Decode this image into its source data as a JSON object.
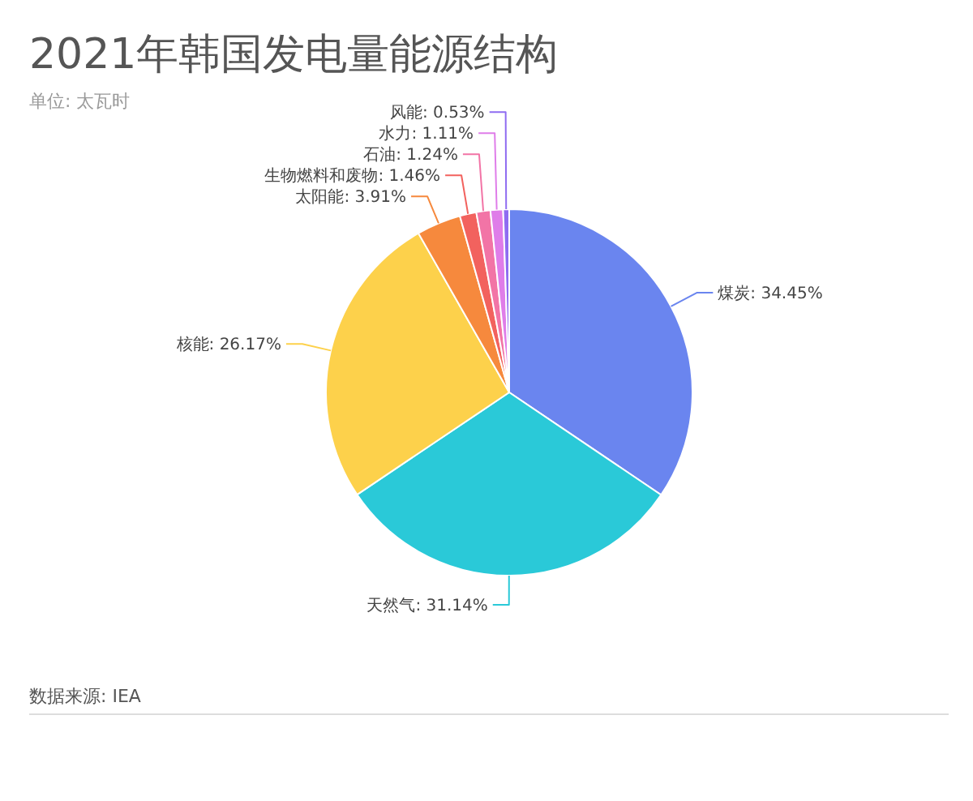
{
  "chart_data": {
    "type": "pie",
    "title": "2021年韩国发电量能源结构",
    "subtitle": "单位: 太瓦时",
    "categories": [
      "煤炭",
      "天然气",
      "核能",
      "太阳能",
      "生物燃料和废物",
      "石油",
      "水力",
      "风能"
    ],
    "values": [
      34.45,
      31.14,
      26.17,
      3.91,
      1.46,
      1.24,
      1.11,
      0.53
    ],
    "colors": [
      "#6a85ef",
      "#2ac9d8",
      "#fdd14b",
      "#f6893d",
      "#f2625e",
      "#f274a6",
      "#df7de9",
      "#8f6cf1"
    ],
    "value_labels": [
      "34.45%",
      "31.14%",
      "26.17%",
      "3.91%",
      "1.46%",
      "1.24%",
      "1.11%",
      "0.53%"
    ],
    "annotations": [
      "数据来源: IEA"
    ]
  }
}
